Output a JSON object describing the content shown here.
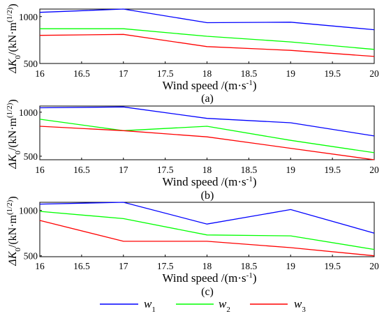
{
  "colors": {
    "w1": "#0000ff",
    "w2": "#00ff00",
    "w3": "#ff0000"
  },
  "legend": [
    {
      "key": "w1",
      "base": "w",
      "sub": "1"
    },
    {
      "key": "w2",
      "base": "w",
      "sub": "2"
    },
    {
      "key": "w3",
      "base": "w",
      "sub": "3"
    }
  ],
  "ylabel": {
    "main": "ΔK",
    "sub": "0",
    "unit": "/(kN·m",
    "sup": "(1/2)",
    "close": ")"
  },
  "xlabel": {
    "main": "Wind speed /(m·s",
    "sup": "-1",
    "close": ")"
  },
  "chart_data": [
    {
      "type": "line",
      "caption": "(a)",
      "x": [
        16,
        17,
        18,
        19,
        20
      ],
      "x_ticks": [
        "16",
        "16.5",
        "17",
        "17.5",
        "18",
        "18.5",
        "19",
        "19.5",
        "20"
      ],
      "y_ticks": [
        "1000",
        "500"
      ],
      "xlim": [
        16,
        20
      ],
      "ylim": [
        500,
        1080
      ],
      "grid": false,
      "series": [
        {
          "name": "w1",
          "values": [
            1045,
            1080,
            935,
            940,
            860
          ]
        },
        {
          "name": "w2",
          "values": [
            870,
            870,
            790,
            730,
            650
          ]
        },
        {
          "name": "w3",
          "values": [
            800,
            810,
            680,
            640,
            575
          ]
        }
      ]
    },
    {
      "type": "line",
      "caption": "(b)",
      "x": [
        16,
        17,
        18,
        19,
        20
      ],
      "x_ticks": [
        "16",
        "16.5",
        "17",
        "17.5",
        "18",
        "18.5",
        "19",
        "19.5",
        "20"
      ],
      "y_ticks": [
        "1000",
        "500"
      ],
      "xlim": [
        16,
        20
      ],
      "ylim": [
        460,
        1070
      ],
      "grid": false,
      "series": [
        {
          "name": "w1",
          "values": [
            1050,
            1060,
            930,
            880,
            730
          ]
        },
        {
          "name": "w2",
          "values": [
            920,
            790,
            840,
            680,
            540
          ]
        },
        {
          "name": "w3",
          "values": [
            840,
            790,
            720,
            590,
            460
          ]
        }
      ]
    },
    {
      "type": "line",
      "caption": "(c)",
      "x": [
        16,
        17,
        18,
        19,
        20
      ],
      "x_ticks": [
        "16",
        "16.5",
        "17",
        "17.5",
        "18",
        "18.5",
        "19",
        "19.5",
        "20"
      ],
      "y_ticks": [
        "1000",
        "500"
      ],
      "xlim": [
        16,
        20
      ],
      "ylim": [
        490,
        1090
      ],
      "grid": false,
      "series": [
        {
          "name": "w1",
          "values": [
            1070,
            1090,
            850,
            1010,
            750
          ]
        },
        {
          "name": "w2",
          "values": [
            990,
            910,
            730,
            720,
            570
          ]
        },
        {
          "name": "w3",
          "values": [
            890,
            660,
            660,
            590,
            500
          ]
        }
      ]
    }
  ]
}
